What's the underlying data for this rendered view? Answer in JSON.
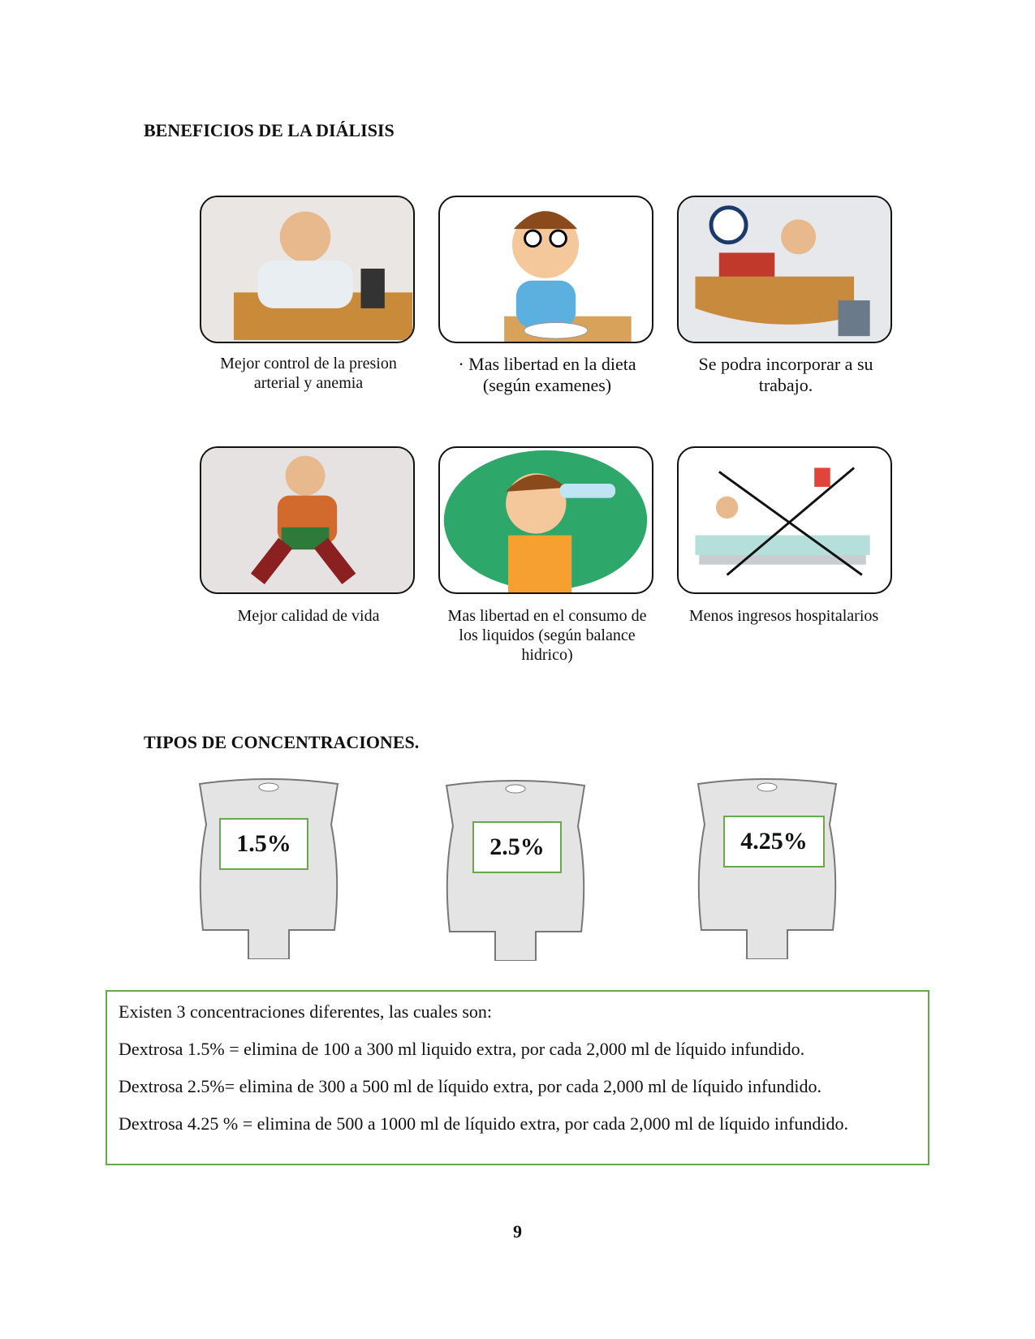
{
  "heading_1": "BENEFICIOS DE LA DIÁLISIS",
  "benefits": [
    "Mejor control de la presion arterial y anemia",
    "· Mas libertad en la dieta (según examenes)",
    "Se podra incorporar a su trabajo.",
    "Mejor calidad de vida",
    "Mas libertad en el consumo de los liquidos (según balance hidrico)",
    "Menos ingresos hospitalarios"
  ],
  "heading_2": "TIPOS DE CONCENTRACIONES.",
  "concentrations": [
    "1.5%",
    "2.5%",
    "4.25%"
  ],
  "info_box": {
    "intro": "Existen 3 concentraciones diferentes, las cuales son:",
    "lines": [
      "Dextrosa 1.5% = elimina de 100 a 300 ml liquido extra, por cada 2,000 ml de líquido infundido.",
      "Dextrosa 2.5%= elimina de 300 a 500 ml de líquido extra, por cada 2,000 ml de líquido infundido.",
      "Dextrosa 4.25 % = elimina de 500 a 1000 ml de líquido extra, por cada 2,000 ml de líquido infundido."
    ]
  },
  "page_number": "9"
}
